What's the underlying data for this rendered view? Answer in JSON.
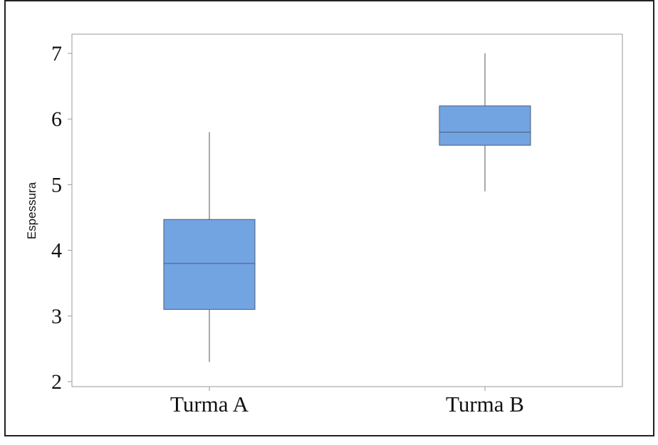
{
  "chart_data": {
    "type": "boxplot",
    "title": "",
    "xlabel": "",
    "ylabel": "Espessura",
    "ylim": [
      2,
      7
    ],
    "yticks": [
      2,
      3,
      4,
      5,
      6,
      7
    ],
    "grid": false,
    "legend": "none",
    "categories": [
      "Turma A",
      "Turma B"
    ],
    "series": [
      {
        "category": "Turma A",
        "min": 2.3,
        "q1": 3.1,
        "median": 3.8,
        "q3": 4.47,
        "max": 5.8
      },
      {
        "category": "Turma B",
        "min": 4.9,
        "q1": 5.6,
        "median": 5.8,
        "q3": 6.2,
        "max": 7.0
      }
    ],
    "box_color": "#73a4e2",
    "box_edge_color": "#4a5a78",
    "line_color": "#555555",
    "frame_color": "#222222",
    "axes_color": "#9a9a9a"
  }
}
